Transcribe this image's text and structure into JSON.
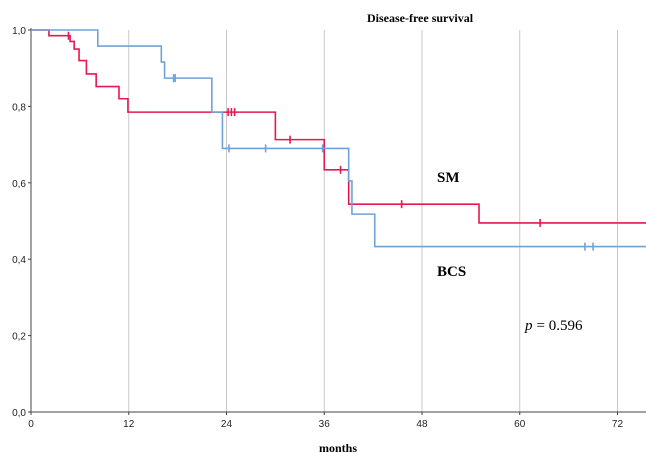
{
  "chart_data": {
    "type": "line",
    "title": "Disease-free survival",
    "xlabel": "months",
    "ylabel": "",
    "xlim": [
      0,
      75.5
    ],
    "ylim": [
      0,
      1.0
    ],
    "x_ticks": [
      0,
      12,
      24,
      36,
      48,
      60,
      72
    ],
    "y_ticks": [
      "0,0",
      "0,2",
      "0,4",
      "0,6",
      "0,8",
      "1,0"
    ],
    "y_tick_values": [
      0,
      0.2,
      0.4,
      0.6,
      0.8,
      1.0
    ],
    "grid": "vertical",
    "annotations": {
      "p_symbol": "p",
      "p_text": "= 0.596"
    },
    "series": [
      {
        "name": "SM",
        "color": "#e8174f",
        "steps": [
          [
            0,
            1.0
          ],
          [
            2.2,
            0.985
          ],
          [
            4.8,
            0.97
          ],
          [
            5.3,
            0.95
          ],
          [
            5.9,
            0.92
          ],
          [
            6.8,
            0.885
          ],
          [
            8.0,
            0.852
          ],
          [
            10.8,
            0.82
          ],
          [
            11.9,
            0.785
          ],
          [
            30.0,
            0.713
          ],
          [
            36.0,
            0.634
          ],
          [
            39.0,
            0.544
          ],
          [
            55.0,
            0.495
          ],
          [
            75.5,
            0.495
          ]
        ],
        "censors": [
          [
            4.6,
            0.985
          ],
          [
            24.2,
            0.785
          ],
          [
            24.6,
            0.785
          ],
          [
            25.0,
            0.785
          ],
          [
            31.8,
            0.713
          ],
          [
            38.0,
            0.634
          ],
          [
            45.5,
            0.544
          ],
          [
            62.5,
            0.495
          ]
        ]
      },
      {
        "name": "BCS",
        "color": "#6fa3d8",
        "steps": [
          [
            0,
            1.0
          ],
          [
            8.2,
            0.958
          ],
          [
            16.0,
            0.916
          ],
          [
            16.4,
            0.874
          ],
          [
            22.2,
            0.785
          ],
          [
            23.5,
            0.69
          ],
          [
            39.0,
            0.605
          ],
          [
            39.4,
            0.518
          ],
          [
            42.2,
            0.433
          ],
          [
            75.5,
            0.433
          ]
        ],
        "censors": [
          [
            17.5,
            0.874
          ],
          [
            17.7,
            0.874
          ],
          [
            24.3,
            0.69
          ],
          [
            28.8,
            0.69
          ],
          [
            35.8,
            0.69
          ],
          [
            68.0,
            0.433
          ],
          [
            69.0,
            0.433
          ]
        ]
      }
    ]
  }
}
